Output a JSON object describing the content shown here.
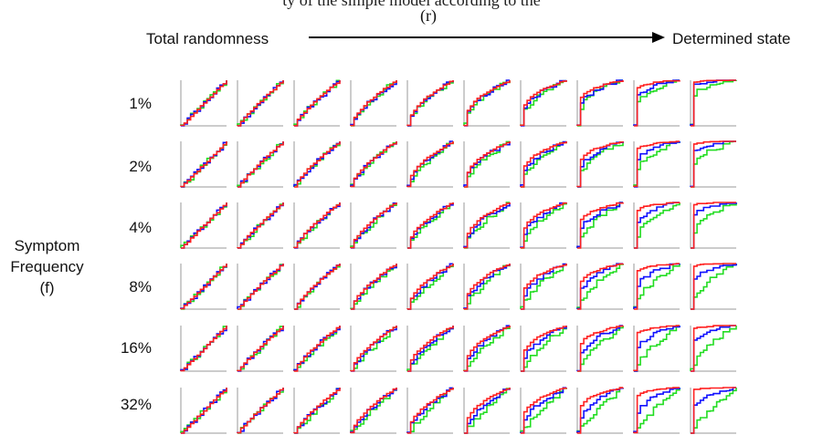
{
  "header_fragment": "ty of the simple model according to the",
  "axis_r": {
    "label": "(r)",
    "left_end": "Total randomness",
    "right_end": "Determined state",
    "arrow_color": "#000000"
  },
  "axis_f": {
    "title_line1": "Symptom",
    "title_line2": "Frequency",
    "title_line3": "(f)",
    "rows": [
      "1%",
      "2%",
      "4%",
      "8%",
      "16%",
      "32%"
    ]
  },
  "grid": {
    "rows": 6,
    "cols": 10
  },
  "series_colors": {
    "red": "#ff2020",
    "blue": "#1010ff",
    "green": "#22dd22"
  }
}
